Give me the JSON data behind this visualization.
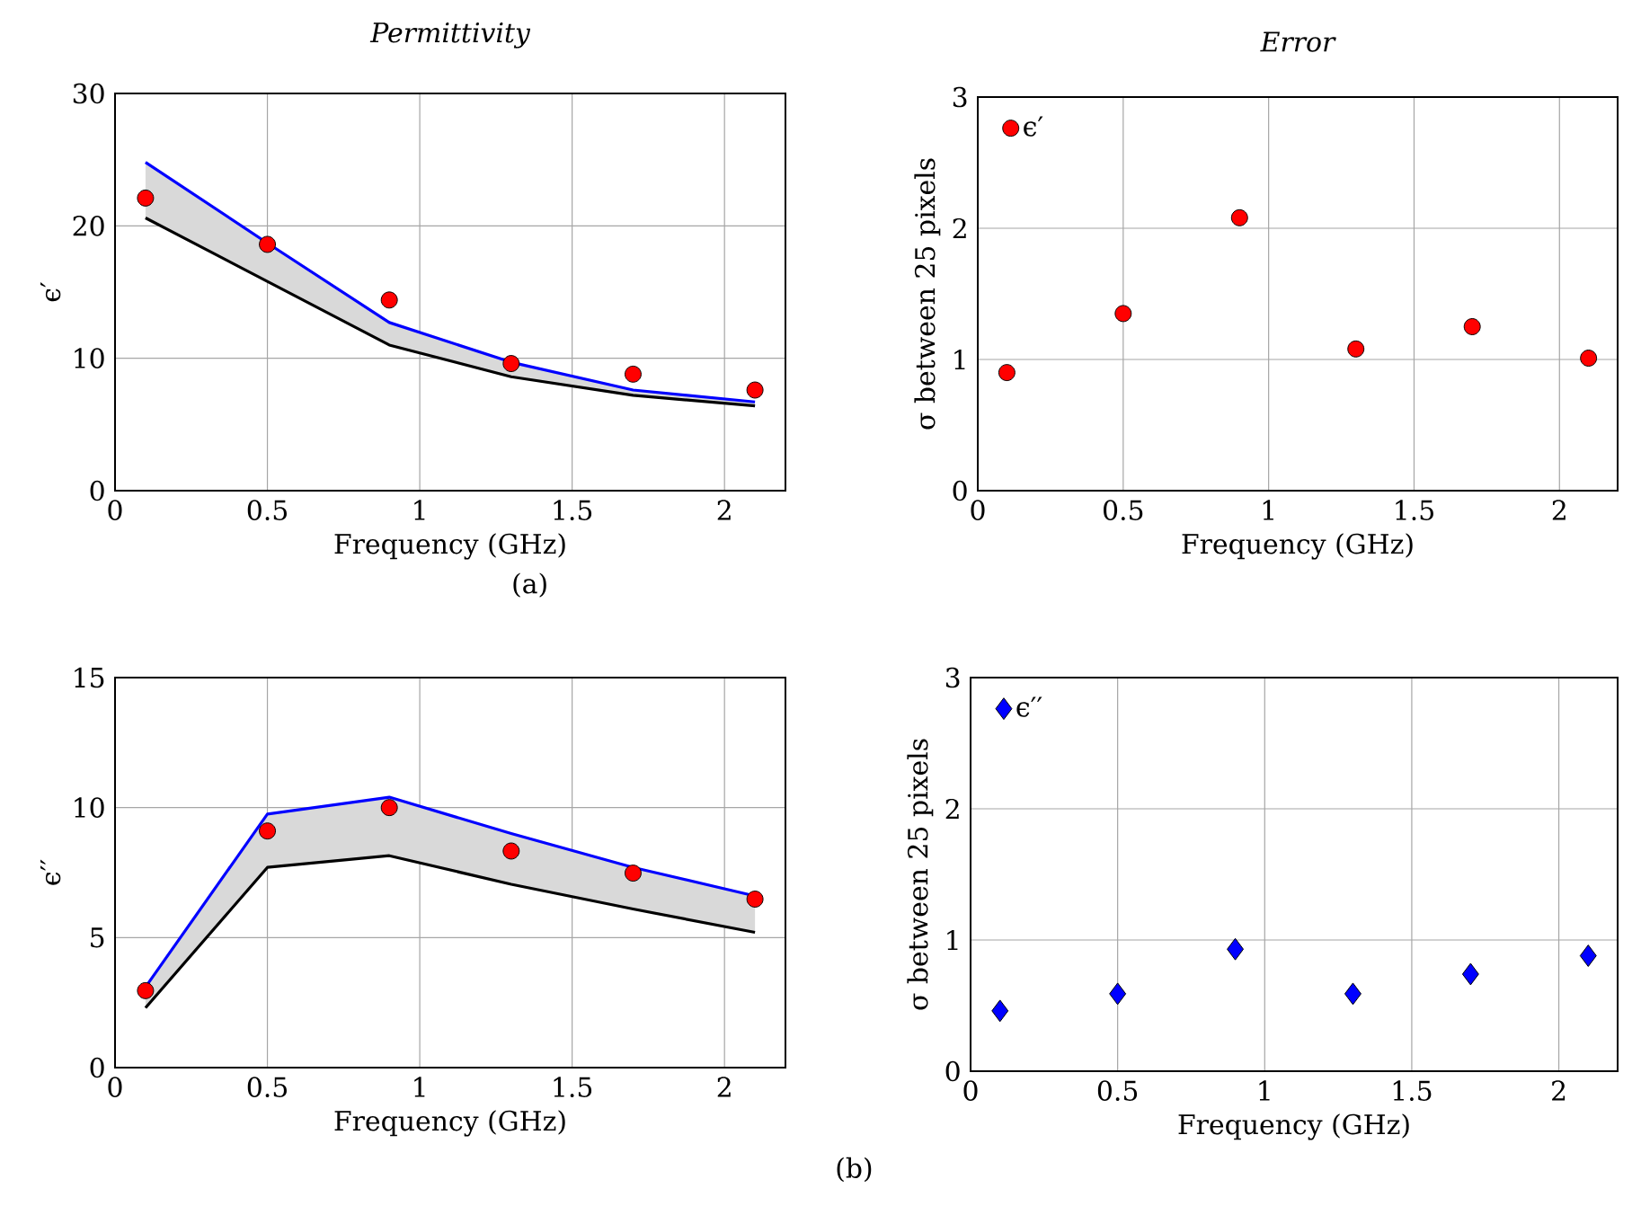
{
  "chart_data": [
    {
      "type": "line",
      "title": "Permittivity",
      "xlabel": "Frequency (GHz)",
      "ylabel": "ϵ′",
      "x": [
        0.1,
        0.5,
        0.9,
        1.3,
        1.7,
        2.1
      ],
      "xlim": [
        0,
        2.2
      ],
      "ylim": [
        0,
        30
      ],
      "xticks": [
        0,
        0.5,
        1,
        1.5,
        2
      ],
      "yticks": [
        0,
        10,
        20,
        30
      ],
      "grid": true,
      "series": [
        {
          "type": "line",
          "color": "#0000ff",
          "values": [
            24.8,
            18.7,
            12.7,
            9.7,
            7.6,
            6.7
          ],
          "lower": [
            20.6,
            15.8,
            11.0,
            8.6,
            7.2,
            6.4
          ],
          "upper": [
            24.8,
            18.7,
            12.7,
            9.7,
            7.6,
            6.7
          ]
        },
        {
          "type": "line",
          "color": "#000000",
          "values": [
            20.6,
            15.8,
            11.0,
            8.6,
            7.2,
            6.4
          ]
        },
        {
          "type": "scatter",
          "color": "#ff0000",
          "values": [
            22.1,
            18.6,
            14.4,
            9.6,
            8.8,
            7.6
          ]
        }
      ]
    },
    {
      "type": "scatter",
      "title": "Error",
      "xlabel": "Frequency (GHz)",
      "ylabel": "σ between 25 pixels",
      "x": [
        0.1,
        0.5,
        0.9,
        1.3,
        1.7,
        2.1
      ],
      "xlim": [
        0,
        2.2
      ],
      "ylim": [
        0,
        3
      ],
      "xticks": [
        0,
        0.5,
        1,
        1.5,
        2
      ],
      "yticks": [
        0,
        1,
        2,
        3
      ],
      "grid": true,
      "legend": "top left",
      "marker": "circle",
      "annotations": [
        "(a)"
      ],
      "series": [
        {
          "name": "ϵ′",
          "color": "#ff0000",
          "values": [
            0.9,
            1.35,
            2.08,
            1.08,
            1.25,
            1.01
          ]
        }
      ]
    },
    {
      "type": "line",
      "xlabel": "Frequency (GHz)",
      "ylabel": "ϵ′′",
      "x": [
        0.1,
        0.5,
        0.9,
        1.3,
        1.7,
        2.1
      ],
      "xlim": [
        0,
        2.2
      ],
      "ylim": [
        0,
        15
      ],
      "xticks": [
        0,
        0.5,
        1,
        1.5,
        2
      ],
      "yticks": [
        0,
        5,
        10,
        15
      ],
      "grid": true,
      "series": [
        {
          "type": "line",
          "color": "#0000ff",
          "values": [
            3.1,
            9.75,
            10.4,
            9.0,
            7.7,
            6.6
          ],
          "lower": [
            2.3,
            7.7,
            8.15,
            7.05,
            6.1,
            5.2
          ],
          "upper": [
            3.1,
            9.75,
            10.4,
            9.0,
            7.7,
            6.6
          ]
        },
        {
          "type": "line",
          "color": "#000000",
          "values": [
            2.3,
            7.7,
            8.15,
            7.05,
            6.1,
            5.2
          ]
        },
        {
          "type": "scatter",
          "color": "#ff0000",
          "values": [
            2.96,
            9.1,
            10.0,
            8.33,
            7.48,
            6.48
          ]
        }
      ]
    },
    {
      "type": "scatter",
      "xlabel": "Frequency (GHz)",
      "ylabel": "σ between 25 pixels",
      "x": [
        0.1,
        0.5,
        0.9,
        1.3,
        1.7,
        2.1
      ],
      "xlim": [
        0,
        2.2
      ],
      "ylim": [
        0,
        3
      ],
      "xticks": [
        0,
        0.5,
        1,
        1.5,
        2
      ],
      "yticks": [
        0,
        1,
        2,
        3
      ],
      "grid": true,
      "legend": "top left",
      "marker": "diamond",
      "annotations": [
        "(b)"
      ],
      "series": [
        {
          "name": "ϵ′′",
          "color": "#0000ff",
          "values": [
            0.46,
            0.59,
            0.93,
            0.59,
            0.74,
            0.88
          ]
        }
      ]
    }
  ]
}
